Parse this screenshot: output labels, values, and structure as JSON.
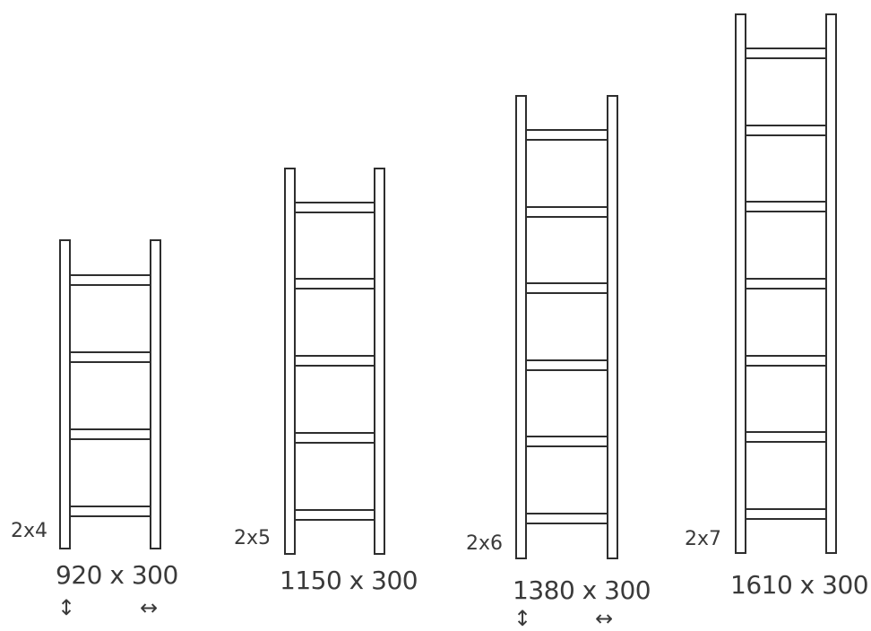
{
  "colors": {
    "background": "#ffffff",
    "stroke": "#2e2e2e",
    "fill": "#ffffff",
    "text": "#3a3a3a"
  },
  "models": [
    {
      "config_label": "2x4",
      "size_label": "920 x 300",
      "rungs": 4,
      "height_arrow": "↕",
      "width_arrow": "↔"
    },
    {
      "config_label": "2x5",
      "size_label": "1150 x 300",
      "rungs": 5
    },
    {
      "config_label": "2x6",
      "size_label": "1380 x 300",
      "rungs": 6,
      "height_arrow": "↕",
      "width_arrow": "↔"
    },
    {
      "config_label": "2x7",
      "size_label": "1610 x 300",
      "rungs": 7
    }
  ]
}
